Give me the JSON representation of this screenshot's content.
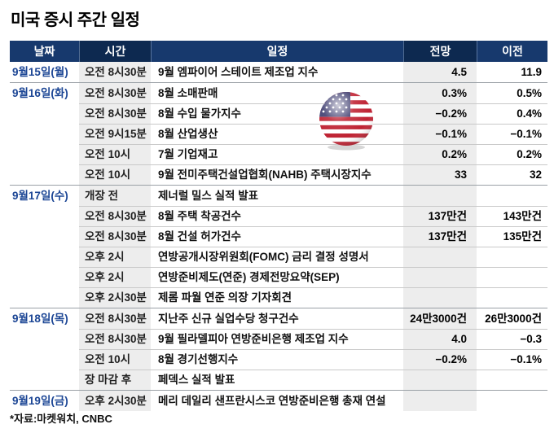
{
  "title": "미국 증시 주간 일정",
  "source_note": "*자료:마켓워치, CNBC",
  "icons": {
    "flag": "us-flag-globe-icon"
  },
  "colors": {
    "header_navy_light": "#17396d",
    "header_navy_dark": "#0d2950",
    "date_blue": "#1c4695",
    "shaded_column": "#ededed",
    "row_rule": "#c9c9c9",
    "group_rule": "#9aa0a6",
    "flag_red": "#bf2333",
    "flag_blue": "#3c3b6e"
  },
  "table": {
    "headers": [
      "날짜",
      "시간",
      "일정",
      "전망",
      "이전"
    ],
    "groups": [
      {
        "date": "9월15일(월)",
        "rows": [
          {
            "time": "오전 8시30분",
            "event": "9월 엠파이어 스테이트 제조업 지수",
            "forecast": "4.5",
            "previous": "11.9"
          }
        ]
      },
      {
        "date": "9월16일(화)",
        "rows": [
          {
            "time": "오전 8시30분",
            "event": "8월 소매판매",
            "forecast": "0.3%",
            "previous": "0.5%"
          },
          {
            "time": "오전 8시30분",
            "event": "8월 수입 물가지수",
            "forecast": "−0.2%",
            "previous": "0.4%"
          },
          {
            "time": "오전 9시15분",
            "event": "8월 산업생산",
            "forecast": "−0.1%",
            "previous": "−0.1%"
          },
          {
            "time": "오전 10시",
            "event": "7월 기업재고",
            "forecast": "0.2%",
            "previous": "0.2%"
          },
          {
            "time": "오전 10시",
            "event": "9월 전미주택건설업협회(NAHB) 주택시장지수",
            "forecast": "33",
            "previous": "32"
          }
        ]
      },
      {
        "date": "9월17일(수)",
        "rows": [
          {
            "time": "개장 전",
            "event": "제너럴 밀스 실적 발표",
            "forecast": "",
            "previous": ""
          },
          {
            "time": "오전 8시30분",
            "event": "8월 주택 착공건수",
            "forecast": "137만건",
            "previous": "143만건"
          },
          {
            "time": "오전 8시30분",
            "event": "8월 건설 허가건수",
            "forecast": "137만건",
            "previous": "135만건"
          },
          {
            "time": "오후 2시",
            "event": "연방공개시장위원회(FOMC) 금리 결정 성명서",
            "forecast": "",
            "previous": ""
          },
          {
            "time": "오후 2시",
            "event": "연방준비제도(연준) 경제전망요약(SEP)",
            "forecast": "",
            "previous": ""
          },
          {
            "time": "오후 2시30분",
            "event": "제롬 파월 연준 의장 기자회견",
            "forecast": "",
            "previous": ""
          }
        ]
      },
      {
        "date": "9월18일(목)",
        "rows": [
          {
            "time": "오전 8시30분",
            "event": "지난주 신규 실업수당 청구건수",
            "forecast": "24만3000건",
            "previous": "26만3000건"
          },
          {
            "time": "오전 8시30분",
            "event": "9월 필라델피아 연방준비은행 제조업 지수",
            "forecast": "4.0",
            "previous": "−0.3"
          },
          {
            "time": "오전 10시",
            "event": "8월 경기선행지수",
            "forecast": "−0.2%",
            "previous": "−0.1%"
          },
          {
            "time": "장 마감 후",
            "event": "페덱스 실적 발표",
            "forecast": "",
            "previous": ""
          }
        ]
      },
      {
        "date": "9월19일(금)",
        "rows": [
          {
            "time": "오후 2시30분",
            "event": "메리 데일리 샌프란시스코 연방준비은행 총재 연설",
            "forecast": "",
            "previous": ""
          }
        ]
      }
    ]
  },
  "chart_data": {
    "type": "table",
    "title": "미국 증시 주간 일정",
    "columns": [
      "날짜",
      "시간",
      "일정",
      "전망",
      "이전"
    ],
    "rows": [
      [
        "9월15일(월)",
        "오전 8시30분",
        "9월 엠파이어 스테이트 제조업 지수",
        "4.5",
        "11.9"
      ],
      [
        "9월16일(화)",
        "오전 8시30분",
        "8월 소매판매",
        "0.3%",
        "0.5%"
      ],
      [
        "",
        "오전 8시30분",
        "8월 수입 물가지수",
        "−0.2%",
        "0.4%"
      ],
      [
        "",
        "오전 9시15분",
        "8월 산업생산",
        "−0.1%",
        "−0.1%"
      ],
      [
        "",
        "오전 10시",
        "7월 기업재고",
        "0.2%",
        "0.2%"
      ],
      [
        "",
        "오전 10시",
        "9월 전미주택건설업협회(NAHB) 주택시장지수",
        "33",
        "32"
      ],
      [
        "9월17일(수)",
        "개장 전",
        "제너럴 밀스 실적 발표",
        "",
        ""
      ],
      [
        "",
        "오전 8시30분",
        "8월 주택 착공건수",
        "137만건",
        "143만건"
      ],
      [
        "",
        "오전 8시30분",
        "8월 건설 허가건수",
        "137만건",
        "135만건"
      ],
      [
        "",
        "오후 2시",
        "연방공개시장위원회(FOMC) 금리 결정 성명서",
        "",
        ""
      ],
      [
        "",
        "오후 2시",
        "연방준비제도(연준) 경제전망요약(SEP)",
        "",
        ""
      ],
      [
        "",
        "오후 2시30분",
        "제롬 파월 연준 의장 기자회견",
        "",
        ""
      ],
      [
        "9월18일(목)",
        "오전 8시30분",
        "지난주 신규 실업수당 청구건수",
        "24만3000건",
        "26만3000건"
      ],
      [
        "",
        "오전 8시30분",
        "9월 필라델피아 연방준비은행 제조업 지수",
        "4.0",
        "−0.3"
      ],
      [
        "",
        "오전 10시",
        "8월 경기선행지수",
        "−0.2%",
        "−0.1%"
      ],
      [
        "",
        "장 마감 후",
        "페덱스 실적 발표",
        "",
        ""
      ],
      [
        "9월19일(금)",
        "오후 2시30분",
        "메리 데일리 샌프란시스코 연방준비은행 총재 연설",
        "",
        ""
      ]
    ],
    "source": "마켓워치, CNBC"
  }
}
